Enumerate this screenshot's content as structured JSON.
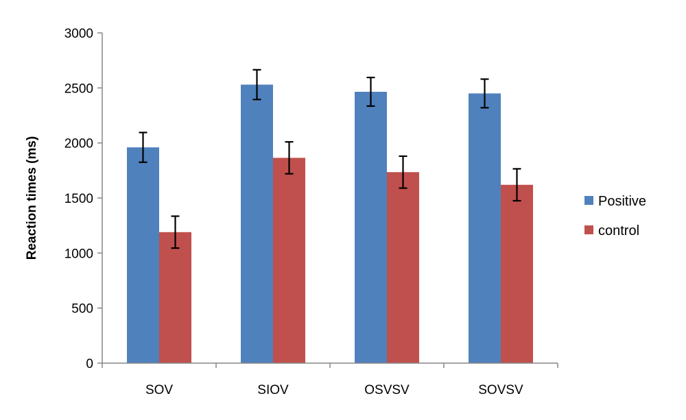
{
  "chart_data": {
    "type": "bar",
    "title": "",
    "xlabel": "",
    "ylabel": "Reaction times (ms)",
    "ylim": [
      0,
      3000
    ],
    "yticks": [
      0,
      500,
      1000,
      1500,
      2000,
      2500,
      3000
    ],
    "grid": false,
    "legend_position": "right",
    "categories": [
      "SOV",
      "SIOV",
      "OSVSV",
      "SOVSV"
    ],
    "series": [
      {
        "name": "Positive",
        "color": "#4F81BD",
        "values": [
          1960,
          2530,
          2465,
          2450
        ],
        "error": [
          135,
          135,
          130,
          130
        ]
      },
      {
        "name": "control",
        "color": "#C0504D",
        "values": [
          1190,
          1865,
          1735,
          1620
        ],
        "error": [
          145,
          145,
          145,
          145
        ]
      }
    ]
  }
}
